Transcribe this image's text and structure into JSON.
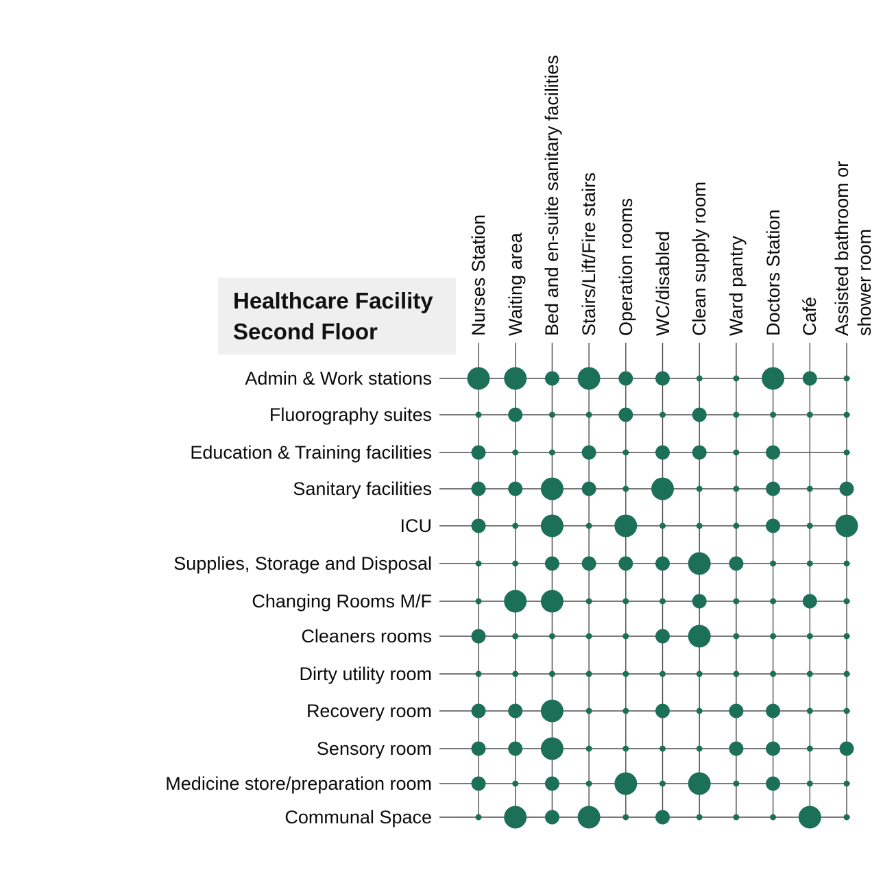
{
  "title": {
    "line1": "Healthcare Facility",
    "line2": "Second Floor"
  },
  "chart_data": {
    "type": "bubble-matrix",
    "title": "Healthcare Facility Second Floor",
    "columns": [
      "Nurses Station",
      "Waiting area",
      "Bed and en-suite sanitary facilities",
      "Stairs/Lift/Fire stairs",
      "Operation rooms",
      "WC/disabled",
      "Clean supply room",
      "Ward pantry",
      "Doctors Station",
      "Café",
      "Assisted bathroom or shower room"
    ],
    "rows": [
      "Admin & Work stations",
      "Fluorography suites",
      "Education & Training facilities",
      "Sanitary facilities",
      "ICU",
      "Supplies, Storage and Disposal",
      "Changing Rooms M/F",
      "Cleaners rooms",
      "Dirty utility room",
      "Recovery room",
      "Sensory room",
      "Medicine store/preparation room",
      "Communal Space"
    ],
    "size_scale": {
      "0": "none",
      "1": "small",
      "2": "medium",
      "3": "large"
    },
    "matrix": [
      [
        3,
        3,
        2,
        3,
        2,
        2,
        1,
        1,
        3,
        2,
        1
      ],
      [
        1,
        2,
        1,
        1,
        2,
        1,
        2,
        1,
        1,
        1,
        1
      ],
      [
        2,
        1,
        1,
        2,
        1,
        2,
        2,
        1,
        2,
        0,
        1
      ],
      [
        2,
        2,
        3,
        2,
        1,
        3,
        1,
        1,
        2,
        1,
        2
      ],
      [
        2,
        1,
        3,
        1,
        3,
        1,
        1,
        1,
        2,
        1,
        3
      ],
      [
        1,
        1,
        2,
        2,
        2,
        2,
        3,
        2,
        1,
        1,
        1
      ],
      [
        1,
        3,
        3,
        1,
        1,
        1,
        2,
        1,
        1,
        2,
        1
      ],
      [
        2,
        1,
        1,
        1,
        1,
        2,
        3,
        1,
        1,
        1,
        1
      ],
      [
        1,
        1,
        1,
        1,
        1,
        1,
        1,
        1,
        1,
        1,
        1
      ],
      [
        2,
        2,
        3,
        1,
        1,
        2,
        1,
        2,
        2,
        1,
        1
      ],
      [
        2,
        2,
        3,
        1,
        1,
        1,
        1,
        2,
        2,
        1,
        2
      ],
      [
        2,
        1,
        2,
        1,
        3,
        1,
        3,
        1,
        2,
        1,
        1
      ],
      [
        1,
        3,
        2,
        3,
        1,
        2,
        1,
        1,
        1,
        3,
        1
      ]
    ],
    "colors": {
      "bubble": "#1d7058",
      "grid": "#4d4d4d",
      "title_bg": "#efefef",
      "text": "#0a0a0a",
      "background": "#ffffff"
    }
  }
}
